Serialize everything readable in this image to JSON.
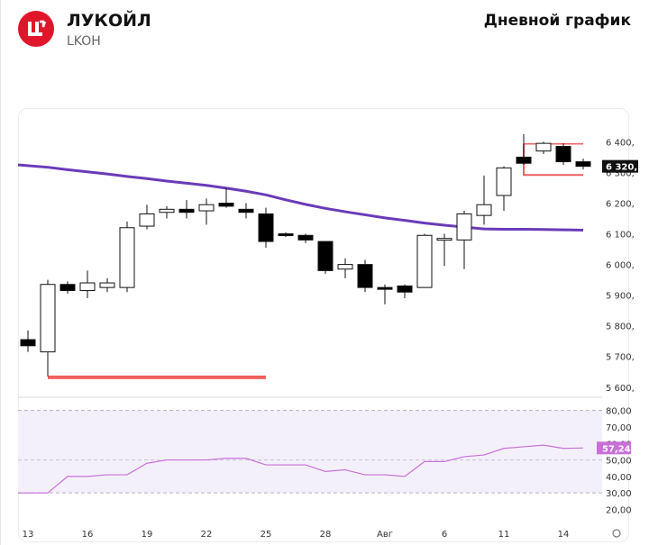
{
  "header": {
    "company_name": "ЛУКОЙЛ",
    "ticker": "LKOH",
    "chart_type_label": "Дневной график",
    "brand_color": "#e0162b"
  },
  "chart_data": [
    {
      "type": "candlestick",
      "ylim": [
        5570,
        6460
      ],
      "y_ticks": [
        "6 400,",
        "6 300,",
        "6 200,",
        "6 100,",
        "6 000,",
        "5 900,",
        "5 800,",
        "5 700,",
        "5 600,"
      ],
      "y_tick_values": [
        6400,
        6300,
        6200,
        6100,
        6000,
        5900,
        5800,
        5700,
        5600
      ],
      "x_ticks": [
        "13",
        "16",
        "19",
        "22",
        "25",
        "28",
        "Авг",
        "6",
        "11",
        "14"
      ],
      "x_tick_index": [
        0,
        3,
        6,
        9,
        12,
        15,
        18,
        21,
        24,
        27
      ],
      "last_price_label": "6 320,",
      "candles": [
        {
          "o": 5755,
          "h": 5785,
          "l": 5715,
          "c": 5735
        },
        {
          "o": 5715,
          "h": 5950,
          "l": 5635,
          "c": 5935
        },
        {
          "o": 5935,
          "h": 5945,
          "l": 5905,
          "c": 5915
        },
        {
          "o": 5915,
          "h": 5980,
          "l": 5890,
          "c": 5940
        },
        {
          "o": 5925,
          "h": 5955,
          "l": 5910,
          "c": 5940
        },
        {
          "o": 5925,
          "h": 6140,
          "l": 5910,
          "c": 6120
        },
        {
          "o": 6125,
          "h": 6195,
          "l": 6115,
          "c": 6165
        },
        {
          "o": 6170,
          "h": 6190,
          "l": 6150,
          "c": 6180
        },
        {
          "o": 6180,
          "h": 6210,
          "l": 6150,
          "c": 6170
        },
        {
          "o": 6175,
          "h": 6215,
          "l": 6130,
          "c": 6195
        },
        {
          "o": 6200,
          "h": 6250,
          "l": 6185,
          "c": 6190
        },
        {
          "o": 6180,
          "h": 6200,
          "l": 6150,
          "c": 6170
        },
        {
          "o": 6165,
          "h": 6185,
          "l": 6055,
          "c": 6075
        },
        {
          "o": 6100,
          "h": 6105,
          "l": 6090,
          "c": 6095
        },
        {
          "o": 6095,
          "h": 6100,
          "l": 6070,
          "c": 6080
        },
        {
          "o": 6075,
          "h": 6075,
          "l": 5970,
          "c": 5980
        },
        {
          "o": 5985,
          "h": 6020,
          "l": 5955,
          "c": 6000
        },
        {
          "o": 6000,
          "h": 6015,
          "l": 5910,
          "c": 5925
        },
        {
          "o": 5925,
          "h": 5935,
          "l": 5870,
          "c": 5920
        },
        {
          "o": 5930,
          "h": 5935,
          "l": 5890,
          "c": 5910
        },
        {
          "o": 5925,
          "h": 6100,
          "l": 5925,
          "c": 6095
        },
        {
          "o": 6080,
          "h": 6100,
          "l": 5995,
          "c": 6085
        },
        {
          "o": 6080,
          "h": 6175,
          "l": 5985,
          "c": 6165
        },
        {
          "o": 6160,
          "h": 6290,
          "l": 6130,
          "c": 6195
        },
        {
          "o": 6225,
          "h": 6320,
          "l": 6175,
          "c": 6315
        },
        {
          "o": 6350,
          "h": 6425,
          "l": 6325,
          "c": 6330
        },
        {
          "o": 6370,
          "h": 6400,
          "l": 6360,
          "c": 6395
        },
        {
          "o": 6385,
          "h": 6395,
          "l": 6325,
          "c": 6335
        },
        {
          "o": 6335,
          "h": 6345,
          "l": 6310,
          "c": 6320
        }
      ],
      "moving_average": [
        6325,
        6317,
        6309,
        6302,
        6295,
        6287,
        6280,
        6272,
        6265,
        6258,
        6249,
        6239,
        6227,
        6211,
        6196,
        6183,
        6172,
        6162,
        6152,
        6144,
        6135,
        6128,
        6122,
        6116,
        6115,
        6115,
        6114,
        6113,
        6112
      ],
      "support_line": {
        "value": 5632,
        "from_index": 1,
        "to_index": 12,
        "color": "#f06060"
      },
      "range_box": {
        "top": 6393,
        "bottom": 6292,
        "from_index": 25,
        "to_index": 28,
        "color": "#f06060"
      },
      "candle_up_color": "#ffffff",
      "candle_down_color": "#000000",
      "ma_color": "#6a3bb8"
    },
    {
      "type": "line",
      "ylim": [
        23,
        82
      ],
      "y_ticks": [
        "80,00",
        "70,00",
        "60,00",
        "50,00",
        "40,00",
        "30,00",
        "20,00"
      ],
      "y_tick_values": [
        80,
        70,
        60,
        50,
        40,
        30,
        20
      ],
      "band": [
        30,
        80
      ],
      "dashed_levels": [
        50
      ],
      "last_value_label": "57,24",
      "values": [
        30,
        30,
        40,
        40,
        41,
        41,
        48,
        50,
        50,
        50,
        51,
        51,
        47,
        47,
        47,
        43,
        44,
        41,
        41,
        40,
        49,
        49,
        52,
        53,
        57,
        58,
        59,
        57,
        57.24
      ],
      "line_color": "#c870d8",
      "band_color": "#f4f0fb"
    }
  ]
}
